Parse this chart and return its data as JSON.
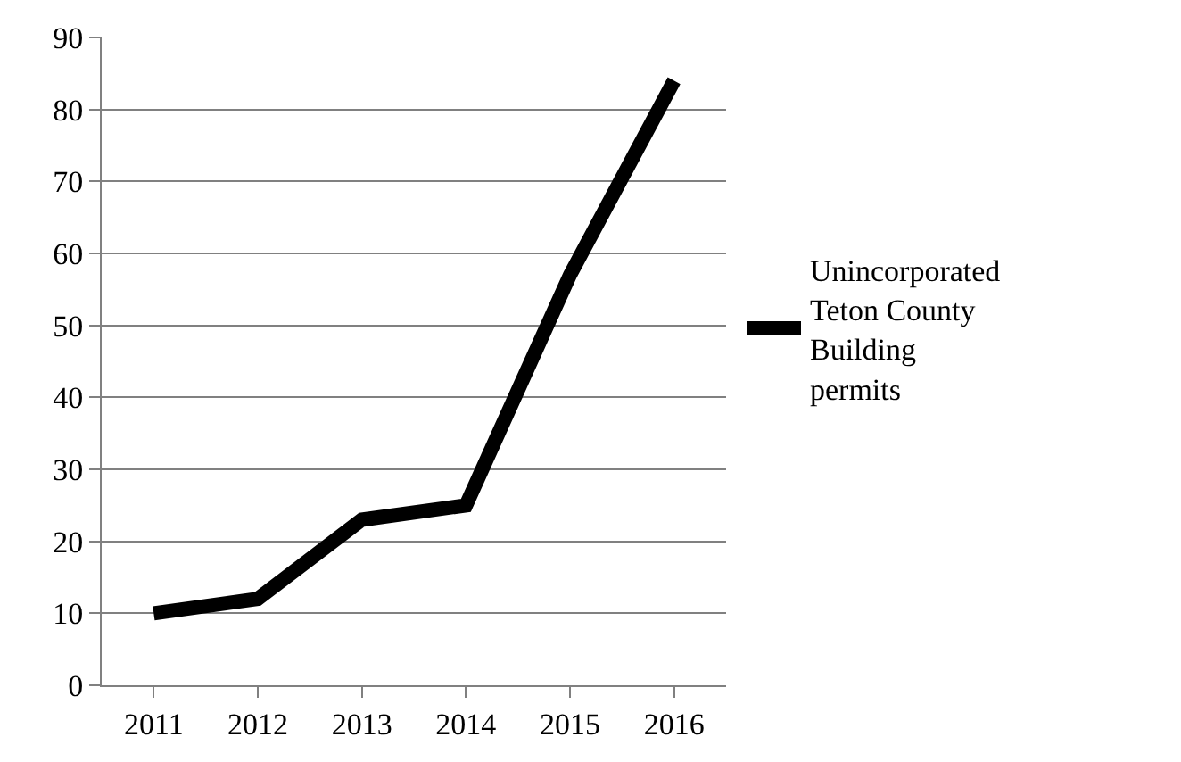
{
  "chart_data": {
    "type": "line",
    "categories": [
      "2011",
      "2012",
      "2013",
      "2014",
      "2015",
      "2016"
    ],
    "series": [
      {
        "name": "Unincorporated Teton County Building permits",
        "color": "#000000",
        "values": [
          10,
          12,
          23,
          25,
          57,
          84
        ]
      }
    ],
    "ylim": [
      0,
      90
    ],
    "yticks": [
      0,
      10,
      20,
      30,
      40,
      50,
      60,
      70,
      80,
      90
    ],
    "grid": "y",
    "legend": "right",
    "marker": "none",
    "line_style": "solid"
  }
}
